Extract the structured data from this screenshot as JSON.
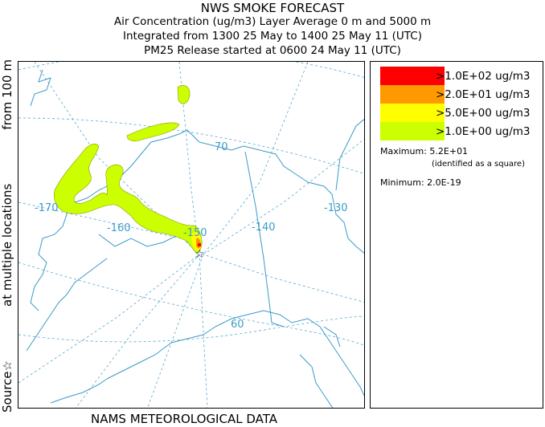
{
  "header": {
    "title": "NWS SMOKE FORECAST",
    "line2": "Air Concentration (ug/m3) Layer Average    0 m and  5000 m",
    "line3": "Integrated from 1300 25 May to 1400 25 May 11 (UTC)",
    "line4": "PM25 Release started at 0600 24 May 11 (UTC)"
  },
  "side_label": {
    "part1": "Source☆",
    "part2": "at multiple locations",
    "part3": "from   100 m"
  },
  "footer": {
    "data_source": "NAMS METEOROLOGICAL DATA"
  },
  "map": {
    "longitude_labels": [
      "-170",
      "-160",
      "-150",
      "-140",
      "-130"
    ],
    "latitude_labels": [
      "70",
      "60"
    ],
    "line_color": "#3a9bc8",
    "grid_color": "#5aa8d0"
  },
  "legend": {
    "levels": [
      {
        "label": ">1.0E+02 ug/m3",
        "color": "#ff0000"
      },
      {
        "label": ">2.0E+01 ug/m3",
        "color": "#ff9900"
      },
      {
        "label": ">5.0E+00 ug/m3",
        "color": "#ffff00"
      },
      {
        "label": ">1.0E+00 ug/m3",
        "color": "#ccff00"
      }
    ],
    "maximum": "Maximum: 5.2E+01",
    "maximum_note": "(identified as a square)",
    "minimum": "Minimum: 2.0E-19"
  }
}
